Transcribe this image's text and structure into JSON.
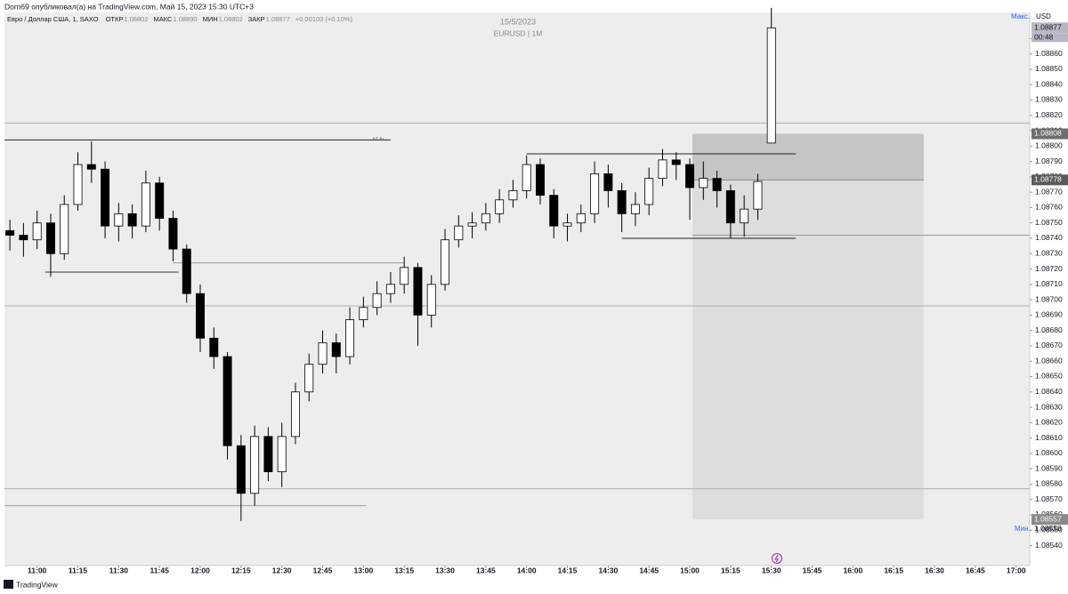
{
  "header": {
    "byline": "Dorn69 опубликовал(а) на TradingView.com, Май 15, 2023 15:30 UTC+3",
    "instrument": "Евро / Доллар США, 1, SAXO",
    "ohlc": [
      {
        "label": "ОТКР",
        "value": "1.08802"
      },
      {
        "label": "МАКС",
        "value": "1.08890"
      },
      {
        "label": "МИН",
        "value": "1.08802"
      },
      {
        "label": "ЗАКР",
        "value": "1.08877"
      }
    ],
    "change": "+0.00103 (+0.10%)"
  },
  "watermark": {
    "date": "15/5/2023",
    "symbol": "EURUSD | 1M"
  },
  "chart_data": {
    "type": "candlestick",
    "x": [
      "10:50",
      "10:55",
      "11:00",
      "11:05",
      "11:10",
      "11:15",
      "11:20",
      "11:25",
      "11:30",
      "11:35",
      "11:40",
      "11:45",
      "11:50",
      "11:55",
      "12:00",
      "12:05",
      "12:10",
      "12:15",
      "12:20",
      "12:25",
      "12:30",
      "12:35",
      "12:40",
      "12:45",
      "12:50",
      "12:55",
      "13:00",
      "13:05",
      "13:10",
      "13:15",
      "13:20",
      "13:25",
      "13:30",
      "13:35",
      "13:40",
      "13:45",
      "13:50",
      "13:55",
      "14:00",
      "14:05",
      "14:10",
      "14:15",
      "14:20",
      "14:25",
      "14:30",
      "14:35",
      "14:40",
      "14:45",
      "14:50",
      "14:55",
      "15:00",
      "15:05",
      "15:10",
      "15:15",
      "15:20",
      "15:25",
      "15:30"
    ],
    "open": [
      1.08745,
      1.08742,
      1.08739,
      1.0875,
      1.0873,
      1.08762,
      1.08788,
      1.08785,
      1.08748,
      1.08756,
      1.08748,
      1.08776,
      1.08753,
      1.08733,
      1.08704,
      1.08675,
      1.08663,
      1.08605,
      1.08574,
      1.08611,
      1.08588,
      1.08611,
      1.0864,
      1.08658,
      1.08672,
      1.08663,
      1.08687,
      1.08695,
      1.08704,
      1.0871,
      1.08721,
      1.0869,
      1.0871,
      1.08739,
      1.08748,
      1.0875,
      1.08756,
      1.08765,
      1.08771,
      1.08788,
      1.08768,
      1.08748,
      1.0875,
      1.08756,
      1.08782,
      1.08771,
      1.08756,
      1.08762,
      1.08779,
      1.08791,
      1.08788,
      1.08773,
      1.08779,
      1.08771,
      1.0875,
      1.08759,
      1.08802
    ],
    "high": [
      1.08752,
      1.0875,
      1.08758,
      1.08756,
      1.08768,
      1.08796,
      1.08803,
      1.0879,
      1.08763,
      1.08762,
      1.08784,
      1.0878,
      1.08758,
      1.08736,
      1.0871,
      1.08682,
      1.08666,
      1.08612,
      1.08618,
      1.08617,
      1.0862,
      1.08646,
      1.08665,
      1.0868,
      1.08678,
      1.08695,
      1.08702,
      1.08712,
      1.08718,
      1.08728,
      1.08724,
      1.08716,
      1.08746,
      1.08755,
      1.08757,
      1.08763,
      1.08772,
      1.08778,
      1.08794,
      1.08792,
      1.08772,
      1.08756,
      1.08762,
      1.0879,
      1.08788,
      1.08776,
      1.0877,
      1.08786,
      1.08798,
      1.08796,
      1.08792,
      1.0879,
      1.08784,
      1.08775,
      1.08768,
      1.08782,
      1.0889
    ],
    "low": [
      1.08732,
      1.08728,
      1.08733,
      1.08715,
      1.08726,
      1.08758,
      1.08776,
      1.0874,
      1.08738,
      1.0874,
      1.08744,
      1.08745,
      1.08725,
      1.08698,
      1.08666,
      1.08655,
      1.08596,
      1.08556,
      1.08566,
      1.08582,
      1.08578,
      1.08606,
      1.08634,
      1.08652,
      1.08652,
      1.08658,
      1.08682,
      1.0869,
      1.08698,
      1.08704,
      1.0867,
      1.08682,
      1.08706,
      1.08734,
      1.0874,
      1.08745,
      1.0875,
      1.0876,
      1.08766,
      1.08762,
      1.0874,
      1.08738,
      1.08744,
      1.0875,
      1.0876,
      1.08744,
      1.08748,
      1.08755,
      1.08774,
      1.08778,
      1.08752,
      1.08765,
      1.0876,
      1.0874,
      1.08741,
      1.08752,
      1.08802
    ],
    "close": [
      1.08742,
      1.08739,
      1.0875,
      1.0873,
      1.08762,
      1.08788,
      1.08785,
      1.08748,
      1.08756,
      1.08748,
      1.08776,
      1.08753,
      1.08733,
      1.08704,
      1.08675,
      1.08663,
      1.08605,
      1.08574,
      1.08611,
      1.08588,
      1.08611,
      1.0864,
      1.08658,
      1.08672,
      1.08663,
      1.08687,
      1.08695,
      1.08704,
      1.0871,
      1.08721,
      1.0869,
      1.0871,
      1.08739,
      1.08748,
      1.0875,
      1.08756,
      1.08765,
      1.08771,
      1.08788,
      1.08768,
      1.08748,
      1.0875,
      1.08756,
      1.08782,
      1.08771,
      1.08756,
      1.08762,
      1.08779,
      1.08791,
      1.08788,
      1.08773,
      1.08779,
      1.08771,
      1.0875,
      1.08759,
      1.08777,
      1.08877
    ],
    "up_color": "#ffffff",
    "down_color": "#000000",
    "wick_color": "#000000",
    "xlim": [
      "10:48",
      "17:05"
    ],
    "xticks": [
      "11:00",
      "11:15",
      "11:30",
      "11:45",
      "12:00",
      "12:15",
      "12:30",
      "12:45",
      "13:00",
      "13:15",
      "13:30",
      "13:45",
      "14:00",
      "14:15",
      "14:30",
      "14:45",
      "15:00",
      "15:15",
      "15:30",
      "15:45",
      "16:00",
      "16:15",
      "16:30",
      "16:45",
      "17:00"
    ],
    "ylim": [
      1.08527,
      1.08887
    ],
    "yticks": [
      {
        "value": 1.0854,
        "label": "1.08540"
      },
      {
        "value": 1.0855,
        "label": "1.08550"
      },
      {
        "value": 1.0856,
        "label": "1.08560"
      },
      {
        "value": 1.0857,
        "label": "1.08570"
      },
      {
        "value": 1.0858,
        "label": "1.08580"
      },
      {
        "value": 1.0859,
        "label": "1.08590"
      },
      {
        "value": 1.086,
        "label": "1.08600"
      },
      {
        "value": 1.0861,
        "label": "1.08610"
      },
      {
        "value": 1.0862,
        "label": "1.08620"
      },
      {
        "value": 1.0863,
        "label": "1.08630"
      },
      {
        "value": 1.0864,
        "label": "1.08640"
      },
      {
        "value": 1.0865,
        "label": "1.08650"
      },
      {
        "value": 1.0866,
        "label": "1.08660"
      },
      {
        "value": 1.0867,
        "label": "1.08670"
      },
      {
        "value": 1.0868,
        "label": "1.08680"
      },
      {
        "value": 1.0869,
        "label": "1.08690"
      },
      {
        "value": 1.087,
        "label": "1.08700"
      },
      {
        "value": 1.0871,
        "label": "1.08710"
      },
      {
        "value": 1.0872,
        "label": "1.08720"
      },
      {
        "value": 1.0873,
        "label": "1.08730"
      },
      {
        "value": 1.0874,
        "label": "1.08740"
      },
      {
        "value": 1.0875,
        "label": "1.08750"
      },
      {
        "value": 1.0876,
        "label": "1.08760"
      },
      {
        "value": 1.0877,
        "label": "1.08770"
      },
      {
        "value": 1.0878,
        "label": "1.08780"
      },
      {
        "value": 1.0879,
        "label": "1.08790"
      },
      {
        "value": 1.088,
        "label": "1.08800"
      },
      {
        "value": 1.0881,
        "label": "1.08810"
      },
      {
        "value": 1.0882,
        "label": "1.08820"
      },
      {
        "value": 1.0883,
        "label": "1.08830"
      },
      {
        "value": 1.0884,
        "label": "1.08840"
      },
      {
        "value": 1.0885,
        "label": "1.08850"
      },
      {
        "value": 1.0886,
        "label": "1.08860"
      },
      {
        "value": 1.0887,
        "label": "1.08870"
      }
    ],
    "y_axis_label": "USD",
    "max_label": "Макс.",
    "min_label": {
      "label": "Мин.",
      "value": 1.08556
    },
    "countdown": "00:48",
    "levels": [
      {
        "price": 1.08815,
        "from": "10:48",
        "to": "17:05",
        "color": "#b0b0b0"
      },
      {
        "price": 1.08804,
        "from": "10:48",
        "to": "13:10",
        "color": "#222222",
        "label": "h1 fu"
      },
      {
        "price": 1.08696,
        "from": "10:48",
        "to": "17:05",
        "color": "#b0b0b0"
      },
      {
        "price": 1.08577,
        "from": "10:48",
        "to": "17:05",
        "color": "#b0b0b0"
      },
      {
        "price": 1.08742,
        "from": "15:01",
        "to": "17:05",
        "color": "#66bb6a"
      },
      {
        "price": 1.08566,
        "from": "10:48",
        "to": "13:01",
        "color": "#c9907a"
      },
      {
        "price": 1.08718,
        "from": "11:03",
        "to": "11:52",
        "color": "#333333"
      },
      {
        "price": 1.08724,
        "from": "11:50",
        "to": "13:15",
        "color": "#999999"
      },
      {
        "price": 1.08795,
        "from": "14:00",
        "to": "15:39",
        "color": "#222222"
      },
      {
        "price": 1.0874,
        "from": "14:35",
        "to": "15:39",
        "color": "#222222"
      }
    ],
    "position": {
      "start": "15:01",
      "end": "16:26",
      "entry": 1.08778,
      "stop": 1.08808,
      "target": 1.08557
    }
  },
  "footer": "TradingView"
}
